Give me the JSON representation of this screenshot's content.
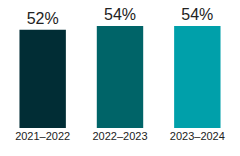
{
  "chart_data": {
    "type": "bar",
    "categories": [
      "2021–2022",
      "2022–2023",
      "2023–2024"
    ],
    "values": [
      52,
      54,
      54
    ],
    "value_labels": [
      "52%",
      "54%",
      "54%"
    ],
    "colors": [
      "#012d35",
      "#006468",
      "#00a0aa"
    ],
    "ylim": [
      0,
      54
    ],
    "data_labels": true,
    "tick_labels": "x",
    "grid": false
  }
}
